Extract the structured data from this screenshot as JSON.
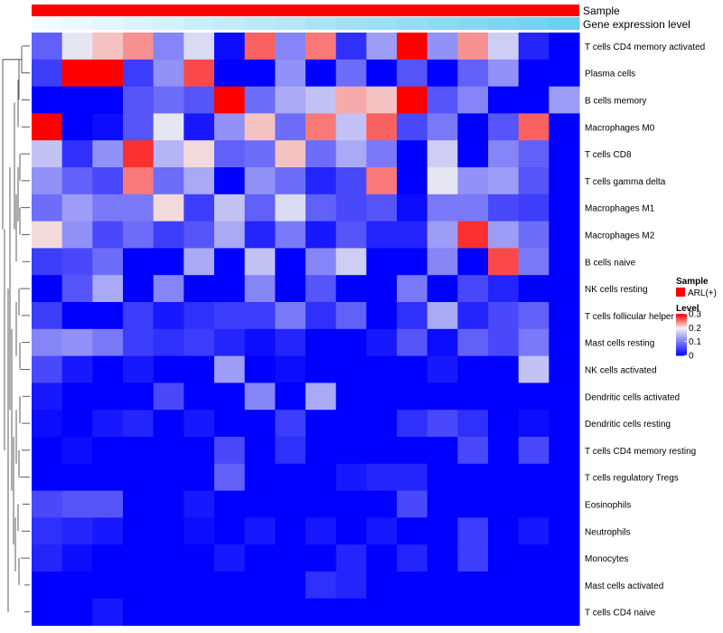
{
  "chart_data": {
    "type": "heatmap",
    "annotation_tracks": [
      {
        "name": "Sample",
        "kind": "categorical",
        "color": "#FF0000"
      },
      {
        "name": "Gene expression level",
        "kind": "gradient",
        "values": [
          0.0,
          0.05,
          0.1,
          0.15,
          0.2,
          0.26,
          0.31,
          0.36,
          0.41,
          0.46,
          0.51,
          0.56,
          0.61,
          0.66,
          0.71,
          0.77,
          0.82,
          0.88
        ],
        "color_low": "#F3FBFE",
        "color_high": "#5DC7EF"
      }
    ],
    "rows": [
      "T cells CD4 memory activated",
      "Plasma cells",
      "B cells memory",
      "Macrophages M0",
      "T cells CD8",
      "T cells gamma delta",
      "Macrophages M1",
      "Macrophages M2",
      "B cells naive",
      "NK cells resting",
      "T cells follicular helper",
      "Mast cells resting",
      "NK cells activated",
      "Dendritic cells activated",
      "Dendritic cells resting",
      "T cells CD4 memory resting",
      "T cells regulatory  Tregs",
      "Eosinophils",
      "Neutrophils",
      "Monocytes",
      "Mast cells activated",
      "T cells CD4 naive"
    ],
    "columns": 18,
    "values": [
      [
        0.08,
        0.19,
        0.22,
        0.24,
        0.11,
        0.18,
        0.01,
        0.26,
        0.11,
        0.25,
        0.04,
        0.13,
        0.3,
        0.12,
        0.24,
        0.17,
        0.03,
        0.0
      ],
      [
        0.05,
        0.3,
        0.3,
        0.05,
        0.12,
        0.27,
        0.0,
        0.0,
        0.12,
        0.0,
        0.09,
        0.0,
        0.07,
        0.0,
        0.08,
        0.12,
        0.0,
        0.0
      ],
      [
        0.0,
        0.0,
        0.0,
        0.07,
        0.09,
        0.07,
        0.3,
        0.09,
        0.14,
        0.16,
        0.23,
        0.22,
        0.3,
        0.07,
        0.11,
        0.0,
        0.0,
        0.13
      ],
      [
        0.3,
        0.0,
        0.01,
        0.07,
        0.19,
        0.02,
        0.12,
        0.22,
        0.09,
        0.25,
        0.16,
        0.26,
        0.06,
        0.1,
        0.0,
        0.07,
        0.26,
        0.0
      ],
      [
        0.16,
        0.04,
        0.12,
        0.28,
        0.15,
        0.21,
        0.08,
        0.09,
        0.22,
        0.09,
        0.14,
        0.1,
        0.0,
        0.17,
        0.0,
        0.11,
        0.08,
        0.0
      ],
      [
        0.12,
        0.08,
        0.06,
        0.25,
        0.09,
        0.14,
        0.0,
        0.12,
        0.09,
        0.03,
        0.06,
        0.25,
        0.0,
        0.19,
        0.12,
        0.13,
        0.07,
        0.0
      ],
      [
        0.09,
        0.13,
        0.1,
        0.1,
        0.21,
        0.05,
        0.16,
        0.08,
        0.18,
        0.08,
        0.06,
        0.07,
        0.01,
        0.1,
        0.1,
        0.06,
        0.05,
        0.0
      ],
      [
        0.21,
        0.12,
        0.06,
        0.09,
        0.05,
        0.07,
        0.14,
        0.03,
        0.1,
        0.02,
        0.07,
        0.03,
        0.03,
        0.13,
        0.28,
        0.13,
        0.09,
        0.0
      ],
      [
        0.05,
        0.06,
        0.09,
        0.0,
        0.0,
        0.14,
        0.0,
        0.16,
        0.0,
        0.11,
        0.17,
        0.0,
        0.0,
        0.11,
        0.0,
        0.27,
        0.1,
        0.0
      ],
      [
        0.0,
        0.07,
        0.14,
        0.0,
        0.11,
        0.0,
        0.0,
        0.11,
        0.0,
        0.07,
        0.0,
        0.0,
        0.1,
        0.0,
        0.06,
        0.03,
        0.0,
        0.0
      ],
      [
        0.05,
        0.0,
        0.0,
        0.05,
        0.02,
        0.04,
        0.05,
        0.05,
        0.1,
        0.04,
        0.08,
        0.0,
        0.04,
        0.14,
        0.03,
        0.06,
        0.08,
        0.0
      ],
      [
        0.11,
        0.12,
        0.1,
        0.05,
        0.04,
        0.05,
        0.03,
        0.01,
        0.03,
        0.0,
        0.0,
        0.02,
        0.07,
        0.01,
        0.08,
        0.06,
        0.1,
        0.0
      ],
      [
        0.06,
        0.02,
        0.0,
        0.02,
        0.0,
        0.0,
        0.13,
        0.0,
        0.01,
        0.0,
        0.0,
        0.0,
        0.0,
        0.02,
        0.0,
        0.0,
        0.16,
        0.0
      ],
      [
        0.02,
        0.0,
        0.0,
        0.0,
        0.06,
        0.0,
        0.0,
        0.11,
        0.0,
        0.14,
        0.0,
        0.0,
        0.0,
        0.0,
        0.0,
        0.0,
        0.0,
        0.0
      ],
      [
        0.01,
        0.0,
        0.02,
        0.03,
        0.0,
        0.02,
        0.0,
        0.0,
        0.05,
        0.0,
        0.0,
        0.0,
        0.04,
        0.06,
        0.04,
        0.0,
        0.01,
        0.0
      ],
      [
        0.0,
        0.01,
        0.0,
        0.0,
        0.0,
        0.0,
        0.06,
        0.0,
        0.04,
        0.0,
        0.0,
        0.0,
        0.0,
        0.0,
        0.06,
        0.0,
        0.06,
        0.0
      ],
      [
        0.0,
        0.0,
        0.0,
        0.0,
        0.0,
        0.0,
        0.08,
        0.0,
        0.0,
        0.0,
        0.02,
        0.03,
        0.03,
        0.0,
        0.0,
        0.0,
        0.0,
        0.0
      ],
      [
        0.06,
        0.07,
        0.07,
        0.0,
        0.0,
        0.02,
        0.0,
        0.0,
        0.0,
        0.0,
        0.0,
        0.0,
        0.06,
        0.0,
        0.0,
        0.0,
        0.0,
        0.0
      ],
      [
        0.04,
        0.03,
        0.02,
        0.0,
        0.0,
        0.01,
        0.0,
        0.02,
        0.0,
        0.02,
        0.0,
        0.02,
        0.0,
        0.0,
        0.05,
        0.0,
        0.02,
        0.0
      ],
      [
        0.03,
        0.01,
        0.0,
        0.0,
        0.0,
        0.0,
        0.02,
        0.0,
        0.0,
        0.0,
        0.03,
        0.0,
        0.03,
        0.0,
        0.05,
        0.0,
        0.0,
        0.0
      ],
      [
        0.0,
        0.0,
        0.0,
        0.0,
        0.0,
        0.0,
        0.0,
        0.0,
        0.0,
        0.04,
        0.03,
        0.0,
        0.0,
        0.0,
        0.0,
        0.0,
        0.0,
        0.0
      ],
      [
        0.0,
        0.0,
        0.02,
        0.0,
        0.0,
        0.0,
        0.0,
        0.0,
        0.0,
        0.0,
        0.0,
        0.0,
        0.0,
        0.0,
        0.0,
        0.0,
        0.0,
        0.0
      ]
    ],
    "color_scale": {
      "min": 0,
      "max": 0.3,
      "low": "#0000FF",
      "mid": "#F2F2F2",
      "high": "#FF0000",
      "mid_value": 0.2
    },
    "legend": {
      "sample_title": "Sample",
      "sample_entry": "ARL(+)",
      "level_title": "Level",
      "level_ticks": [
        {
          "value": 0.3,
          "label": "0.3"
        },
        {
          "value": 0.2,
          "label": "0.2"
        },
        {
          "value": 0.1,
          "label": "0.1"
        },
        {
          "value": 0.0,
          "label": "0"
        }
      ],
      "placement": "right"
    },
    "dendrogram": "rows",
    "dendrogram_order": [
      0,
      1,
      2,
      3,
      4,
      5,
      6,
      7,
      8,
      9,
      10,
      11,
      12,
      13,
      14,
      15,
      16,
      17,
      18,
      19,
      20,
      21
    ]
  }
}
